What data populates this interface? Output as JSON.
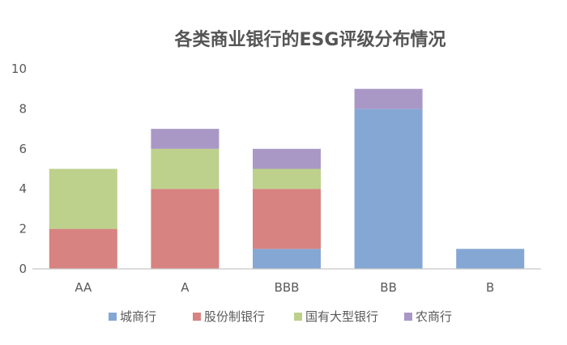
{
  "chart_data": {
    "type": "bar",
    "stacked": true,
    "title": "各类商业银行的ESG评级分布情况",
    "categories": [
      "AA",
      "A",
      "BBB",
      "BB",
      "B"
    ],
    "yticks": [
      "0",
      "2",
      "4",
      "6",
      "8",
      "10"
    ],
    "ylim": [
      0,
      10
    ],
    "grid": false,
    "legend_position": "bottom",
    "series": [
      {
        "name": "城商行",
        "color": "#85A7D4",
        "values": [
          0,
          0,
          1,
          8,
          1
        ]
      },
      {
        "name": "股份制银行",
        "color": "#D78381",
        "values": [
          2,
          4,
          3,
          0,
          0
        ]
      },
      {
        "name": "国有大型银行",
        "color": "#BDD18C",
        "values": [
          3,
          2,
          1,
          0,
          0
        ]
      },
      {
        "name": "农商行",
        "color": "#A998C6",
        "values": [
          0,
          1,
          1,
          1,
          0
        ]
      }
    ]
  }
}
